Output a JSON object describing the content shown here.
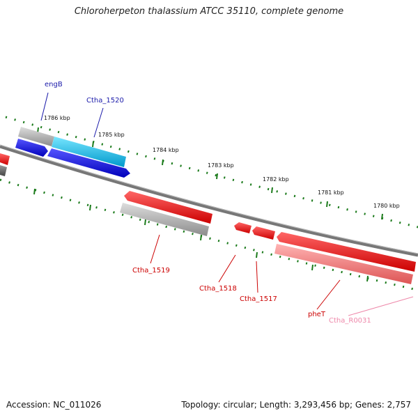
{
  "title": "Chloroherpeton thalassium ATCC 35110, complete genome",
  "footer": {
    "accession": "Accession: NC_011026",
    "summary": "Topology: circular; Length: 3,293,456 bp; Genes: 2,757"
  },
  "colors": {
    "forward_gene": "#0000ee",
    "forward_gene_highlight": "#00bbee",
    "reverse_gene": "#ff0000",
    "rrna_gene": "#ff7777",
    "pseudo_gene": "#aaaaaa",
    "backbone": "#777777",
    "tick": "#1a7a1a",
    "forward_label": "#1a1aaa",
    "reverse_label": "#cc0000",
    "rna_label": "#ee88aa"
  },
  "scale_labels": [
    "1786 kbp",
    "1785 kbp",
    "1784 kbp",
    "1783 kbp",
    "1782 kbp",
    "1781 kbp",
    "1780 kbp"
  ],
  "gene_labels": {
    "engB": "engB",
    "ctha_1520": "Ctha_1520",
    "ctha_1519": "Ctha_1519",
    "ctha_1518": "Ctha_1518",
    "ctha_1517": "Ctha_1517",
    "pheT": "pheT",
    "ctha_r0031": "Ctha_R0031"
  }
}
